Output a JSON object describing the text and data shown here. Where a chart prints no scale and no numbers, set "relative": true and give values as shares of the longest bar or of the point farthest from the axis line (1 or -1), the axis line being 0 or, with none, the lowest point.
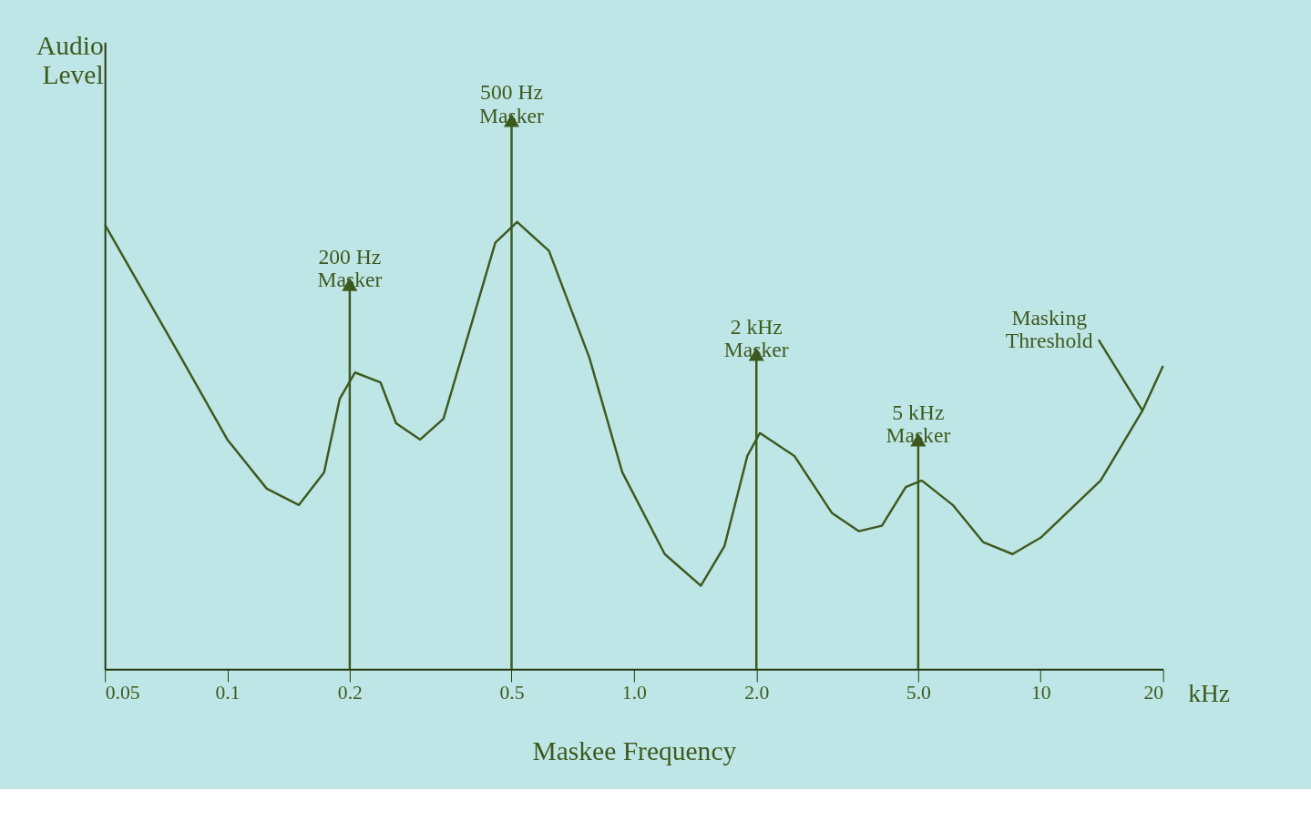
{
  "chart_data": {
    "type": "line",
    "xlabel": "Maskee Frequency",
    "ylabel": "Audio Level",
    "relative": true,
    "tick_labels": "x",
    "grid": false,
    "log": "x",
    "x": [
      0.05,
      0.077,
      0.1,
      0.125,
      0.15,
      0.173,
      0.189,
      0.206,
      0.238,
      0.26,
      0.298,
      0.34,
      0.398,
      0.456,
      0.516,
      0.618,
      0.777,
      0.936,
      1.19,
      1.46,
      1.67,
      1.9,
      2.04,
      2.48,
      3.07,
      3.57,
      4.07,
      4.66,
      5.1,
      6.08,
      7.22,
      8.53,
      10,
      14.05,
      17.8,
      20
    ],
    "xlim": [
      0.05,
      20
    ],
    "xticks": [
      0.05,
      0.1,
      0.2,
      0.5,
      {
        "value": 1,
        "label": "1.0"
      },
      {
        "value": 2,
        "label": "2.0"
      },
      {
        "value": 5,
        "label": "5.0"
      },
      10,
      20
    ],
    "series": [
      {
        "color": "#3d5a1e",
        "line_style": "solid",
        "values": [
          0.815,
          0.571,
          0.421,
          0.331,
          0.301,
          0.361,
          0.496,
          0.544,
          0.526,
          0.451,
          0.421,
          0.459,
          0.632,
          0.782,
          0.82,
          0.767,
          0.571,
          0.361,
          0.211,
          0.153,
          0.226,
          0.391,
          0.433,
          0.391,
          0.286,
          0.253,
          0.263,
          0.334,
          0.346,
          0.301,
          0.233,
          0.211,
          0.241,
          0.346,
          0.474,
          0.556
        ]
      },
      {
        "type": "lollipop",
        "color": "#3d5a1e",
        "marker": "triangle",
        "x": [
          0.2,
          0.5,
          2,
          5
        ],
        "values": [
          0.699,
          1.0,
          0.571,
          0.414
        ]
      }
    ],
    "annotations": [
      {
        "text": "200 Hz\nMasker",
        "x": 0.2,
        "y": 0.699
      },
      {
        "text": "500 Hz\nMasker",
        "x": 0.5,
        "y": 1.0
      },
      {
        "text": "2 kHz\nMasker",
        "x": 2,
        "y": 0.571
      },
      {
        "text": "5 kHz\nMasker",
        "x": 5,
        "y": 0.414
      },
      {
        "text": "Masking\nThreshold",
        "x": 17.8,
        "y": 0.474
      },
      "kHz"
    ]
  }
}
